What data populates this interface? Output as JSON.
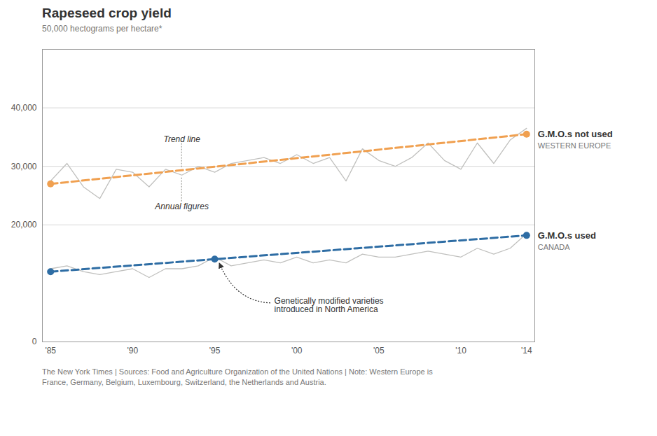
{
  "chart_data": {
    "type": "line",
    "title": "Rapeseed crop yield",
    "subtitle": "50,000 hectograms per hectare*",
    "footer": "The New York Times  |  Sources: Food and Agriculture Organization of the United Nations  |  Note: Western Europe is\nFrance, Germany, Belgium, Luxembourg, Switzerland, the Netherlands and Austria.",
    "x": [
      1985,
      1986,
      1987,
      1988,
      1989,
      1990,
      1991,
      1992,
      1993,
      1994,
      1995,
      1996,
      1997,
      1998,
      1999,
      2000,
      2001,
      2002,
      2003,
      2004,
      2005,
      2006,
      2007,
      2008,
      2009,
      2010,
      2011,
      2012,
      2013,
      2014
    ],
    "series": [
      {
        "color": "#c0c0be",
        "values": [
          27500,
          30500,
          26500,
          24500,
          29500,
          29000,
          26500,
          29500,
          28500,
          30000,
          29000,
          30500,
          31000,
          31500,
          30500,
          32000,
          30500,
          31500,
          27500,
          33000,
          31000,
          30000,
          31500,
          34000,
          31000,
          29500,
          34000,
          30500,
          34500,
          36500
        ]
      },
      {
        "color": "#c0c0be",
        "values": [
          12500,
          13000,
          12000,
          11500,
          12000,
          12500,
          11000,
          12500,
          12500,
          13000,
          14500,
          13000,
          13500,
          14000,
          13500,
          14500,
          13500,
          14000,
          13500,
          15000,
          14500,
          14500,
          15000,
          15500,
          15000,
          14500,
          16000,
          15000,
          16000,
          18500
        ]
      },
      {
        "name": "G.M.O.s not used",
        "sublabel": "WESTERN EUROPE",
        "color": "#f0a050",
        "line_style": "dashed",
        "marker": "circle",
        "x": [
          1985,
          2014
        ],
        "values": [
          27000,
          35500
        ]
      },
      {
        "name": "G.M.O.s used",
        "sublabel": "CANADA",
        "color": "#2e6da4",
        "line_style": "dashed",
        "marker": "circle",
        "x": [
          1985,
          1995,
          2014
        ],
        "values": [
          12000,
          14137.931034482759,
          18200
        ]
      }
    ],
    "annotations": [
      {
        "text": "Trend line",
        "x": 1993,
        "y": 29344.8275862069
      },
      {
        "text": "Annual figures",
        "x": 1993,
        "y": 28500
      },
      {
        "text": "Genetically modified varieties\nintroduced in North America",
        "x": 1995,
        "y": 14137.931034482759
      }
    ],
    "xlim": [
      1984.5,
      2014.5
    ],
    "xticks": [
      {
        "value": 1985,
        "label": "'85"
      },
      {
        "value": 1990,
        "label": "'90"
      },
      {
        "value": 1995,
        "label": "'95"
      },
      {
        "value": 2000,
        "label": "'00"
      },
      {
        "value": 2005,
        "label": "'05"
      },
      {
        "value": 2010,
        "label": "'10"
      },
      {
        "value": 2014,
        "label": "'14"
      }
    ],
    "ylim": [
      0,
      50000
    ],
    "yticks": [
      0,
      {
        "value": 20000,
        "label": "20,000"
      },
      {
        "value": 30000,
        "label": "30,000"
      },
      {
        "value": 40000,
        "label": "40,000"
      }
    ],
    "grid": true
  }
}
